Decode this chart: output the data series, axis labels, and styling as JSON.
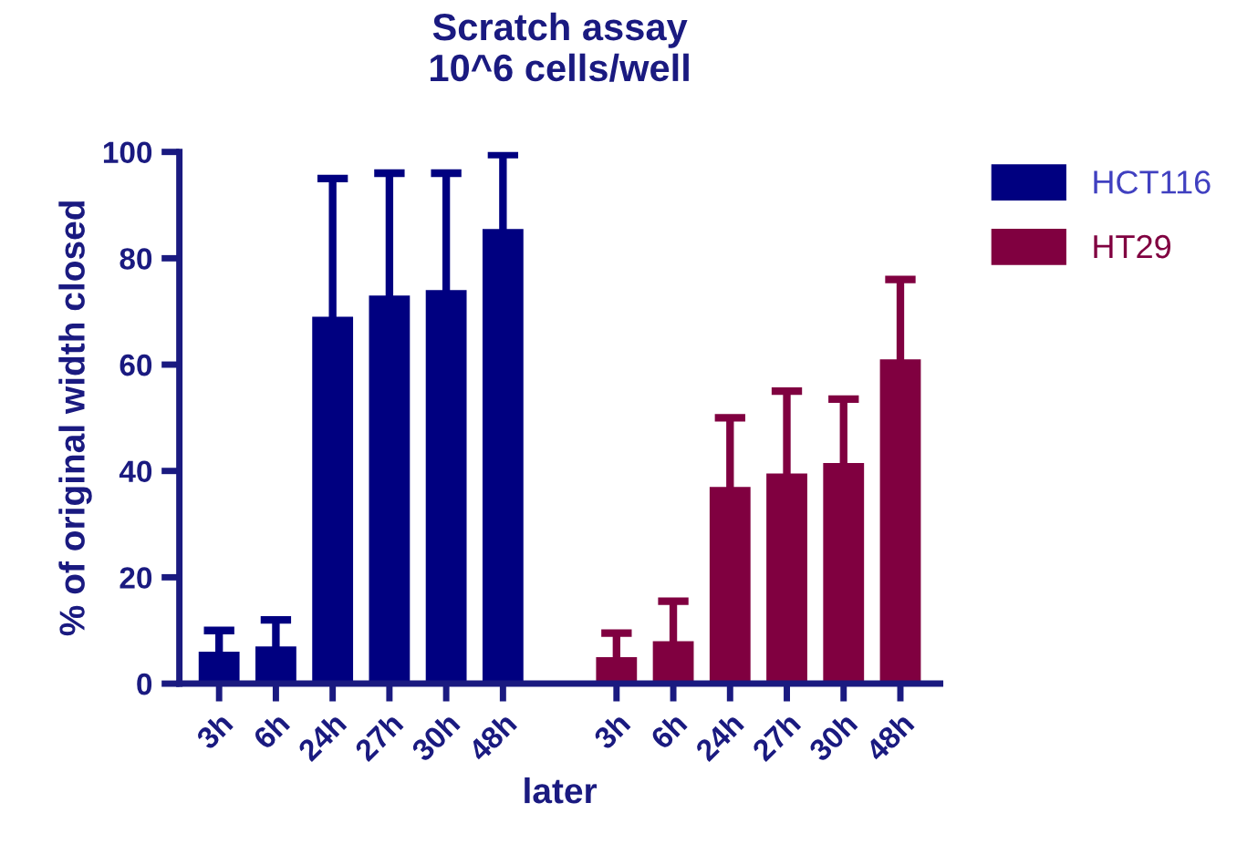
{
  "chart_data": {
    "type": "bar",
    "title": "Scratch assay\n10^6 cells/well",
    "xlabel": "later",
    "ylabel": "% of original width closed",
    "categories": [
      "3h",
      "6h",
      "24h",
      "27h",
      "30h",
      "48h",
      null,
      "3h",
      "6h",
      "24h",
      "27h",
      "30h",
      "48h"
    ],
    "series": [
      {
        "name": "HCT116",
        "color": "#000080",
        "values": [
          6,
          7,
          69,
          73,
          74,
          85.5,
          null,
          null,
          null,
          null,
          null,
          null,
          null
        ],
        "errors": [
          4,
          5,
          26,
          23,
          22,
          14,
          null,
          null,
          null,
          null,
          null,
          null,
          null
        ]
      },
      {
        "name": "HT29",
        "color": "#800040",
        "values": [
          null,
          null,
          null,
          null,
          null,
          null,
          null,
          5,
          8,
          37,
          39.5,
          41.5,
          61
        ],
        "errors": [
          null,
          null,
          null,
          null,
          null,
          null,
          null,
          4.5,
          7.5,
          13,
          15.5,
          12,
          15
        ]
      }
    ],
    "ylim": [
      0,
      100
    ],
    "yticks": [
      0,
      20,
      40,
      60,
      80,
      100
    ],
    "grid": false,
    "legend": "top right"
  }
}
